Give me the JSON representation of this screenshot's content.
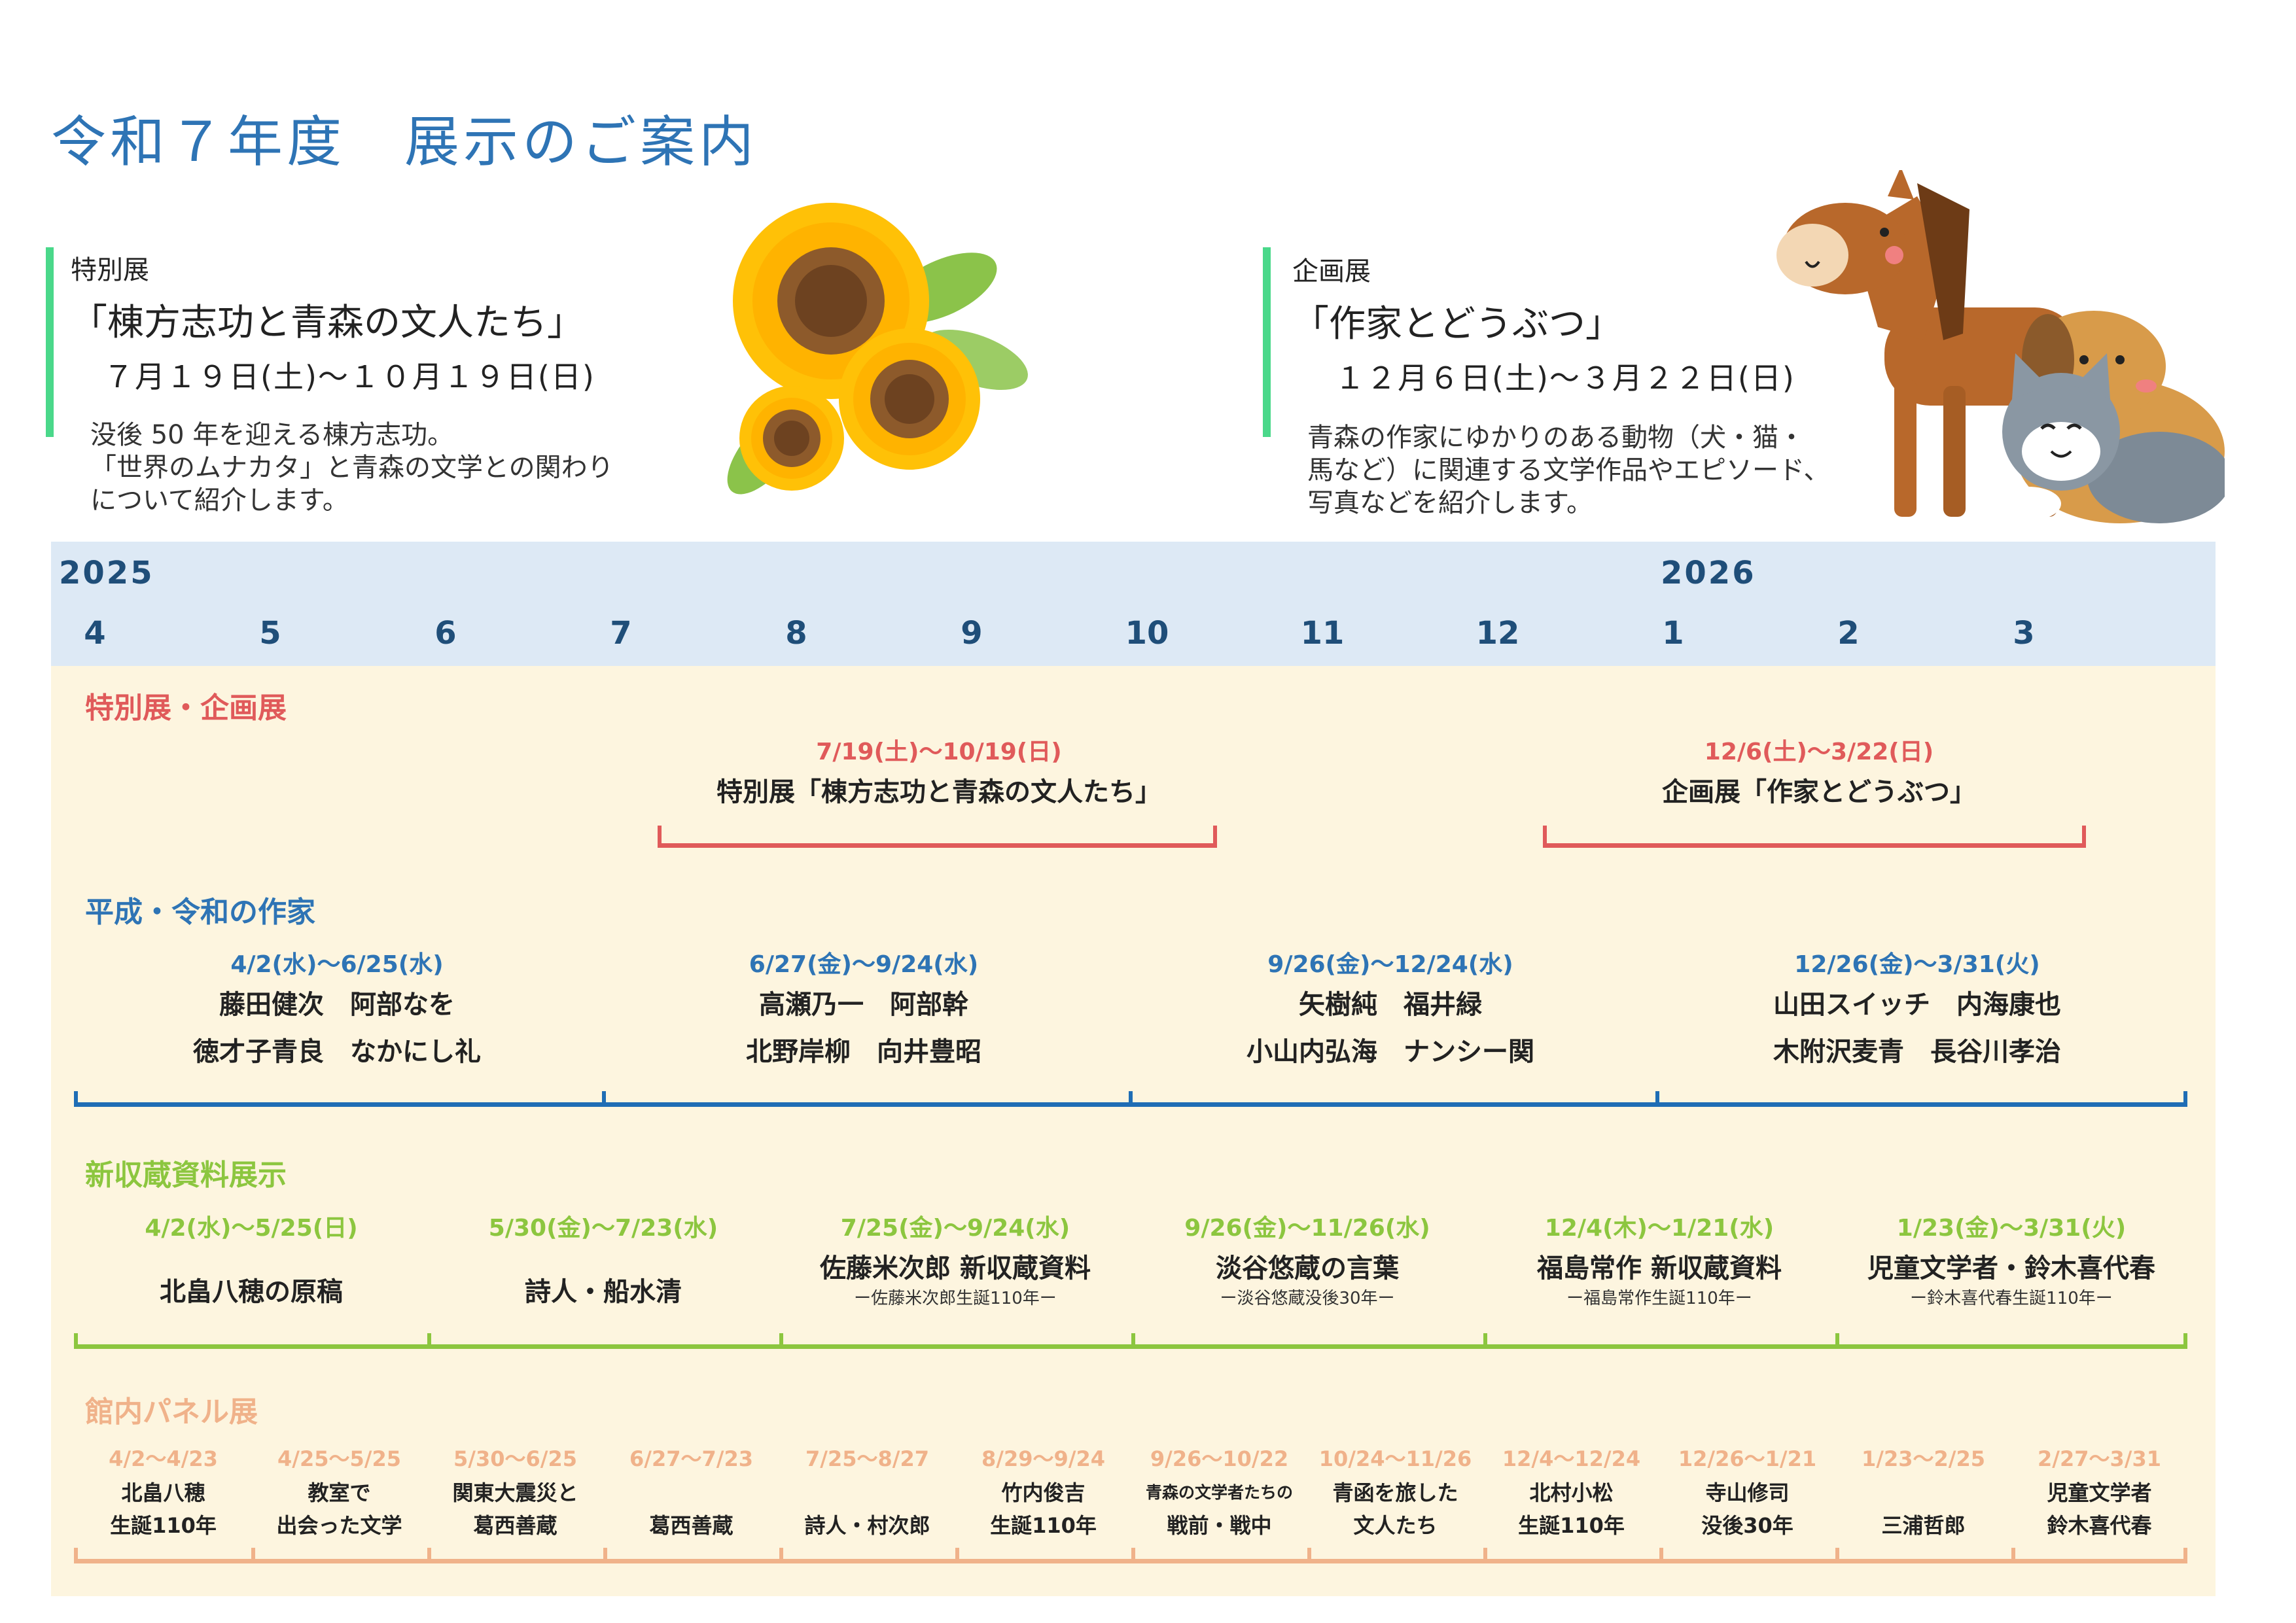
{
  "title": "令和７年度　展示のご案内",
  "special": {
    "kind": "特別展",
    "name": "「棟方志功と青森の文人たち」",
    "dates": "７月１９日(土)～１０月１９日(日)",
    "desc": [
      "没後 50 年を迎える棟方志功。",
      "「世界のムナカタ」と青森の文学との関わり",
      "について紹介します。"
    ]
  },
  "planned": {
    "kind": "企画展",
    "name": "「作家とどうぶつ」",
    "dates": "１２月６日(土)～３月２２日(日)",
    "desc": [
      "青森の作家にゆかりのある動物（犬・猫・",
      "馬など）に関連する文学作品やエピソード、",
      "写真などを紹介します。"
    ]
  },
  "timeline": {
    "years": [
      "2025",
      "2026"
    ],
    "months": [
      "4",
      "5",
      "6",
      "7",
      "8",
      "9",
      "10",
      "11",
      "12",
      "1",
      "2",
      "3"
    ]
  },
  "row_special": {
    "title": "特別展・企画展",
    "items": [
      {
        "date": "7/19(土)～10/19(日)",
        "text": "特別展「棟方志功と青森の文人たち」"
      },
      {
        "date": "12/6(土)～3/22(日)",
        "text": "企画展「作家とどうぶつ」"
      }
    ]
  },
  "row_authors": {
    "title": "平成・令和の作家",
    "items": [
      {
        "date": "4/2(水)～6/25(水)",
        "line1": "藤田健次　阿部なを",
        "line2": "徳才子青良　なかにし礼"
      },
      {
        "date": "6/27(金)～9/24(水)",
        "line1": "高瀬乃一　阿部幹",
        "line2": "北野岸柳　向井豊昭"
      },
      {
        "date": "9/26(金)～12/24(水)",
        "line1": "矢樹純　福井緑",
        "line2": "小山内弘海　ナンシー関"
      },
      {
        "date": "12/26(金)～3/31(火)",
        "line1": "山田スイッチ　内海康也",
        "line2": "木附沢麦青　長谷川孝治"
      }
    ]
  },
  "row_new": {
    "title": "新収蔵資料展示",
    "items": [
      {
        "date": "4/2(水)～5/25(日)",
        "text": "北畠八穂の原稿",
        "sub": ""
      },
      {
        "date": "5/30(金)～7/23(水)",
        "text": "詩人・船水清",
        "sub": ""
      },
      {
        "date": "7/25(金)～9/24(水)",
        "text": "佐藤米次郎 新収蔵資料",
        "sub": "ー佐藤米次郎生誕110年ー"
      },
      {
        "date": "9/26(金)～11/26(水)",
        "text": "淡谷悠蔵の言葉",
        "sub": "ー淡谷悠蔵没後30年ー"
      },
      {
        "date": "12/4(木)～1/21(水)",
        "text": "福島常作 新収蔵資料",
        "sub": "ー福島常作生誕110年ー"
      },
      {
        "date": "1/23(金)～3/31(火)",
        "text": "児童文学者・鈴木喜代春",
        "sub": "ー鈴木喜代春生誕110年ー"
      }
    ]
  },
  "row_panel": {
    "title": "館内パネル展",
    "items": [
      {
        "date": "4/2～4/23",
        "line1": "北畠八穂",
        "line2": "生誕110年"
      },
      {
        "date": "4/25～5/25",
        "line1": "教室で",
        "line2": "出会った文学"
      },
      {
        "date": "5/30～6/25",
        "line1": "関東大震災と",
        "line2": "葛西善蔵"
      },
      {
        "date": "6/27～7/23",
        "line1": "",
        "line2": "葛西善蔵"
      },
      {
        "date": "7/25～8/27",
        "line1": "",
        "line2": "詩人・村次郎"
      },
      {
        "date": "8/29～9/24",
        "line1": "竹内俊吉",
        "line2": "生誕110年"
      },
      {
        "date": "9/26～10/22",
        "line1": "青森の文学者たちの",
        "line2": "戦前・戦中"
      },
      {
        "date": "10/24～11/26",
        "line1": "青函を旅した",
        "line2": "文人たち"
      },
      {
        "date": "12/4～12/24",
        "line1": "北村小松",
        "line2": "生誕110年"
      },
      {
        "date": "12/26～1/21",
        "line1": "寺山修司",
        "line2": "没後30年"
      },
      {
        "date": "1/23～2/25",
        "line1": "",
        "line2": "三浦哲郎"
      },
      {
        "date": "2/27～3/31",
        "line1": "児童文学者",
        "line2": "鈴木喜代春"
      }
    ]
  },
  "colors": {
    "title": "#2e74b5",
    "accent_bar": "#4ad88a",
    "special_row": "#e05a5a",
    "authors_row": "#2e74b5",
    "new_row": "#8cc63f",
    "panel_row": "#f0b28a"
  }
}
